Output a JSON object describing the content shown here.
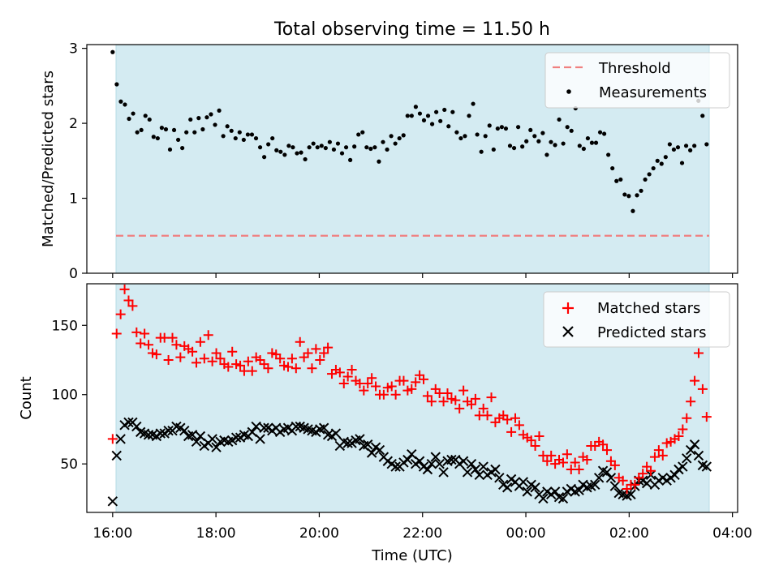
{
  "chart_data": {
    "type": "scatter",
    "title": "Total observing time = 11.50 h",
    "xlabel": "Time (UTC)",
    "x_units": "hours since 16:00 UTC",
    "xlim": [
      -0.5,
      12.1
    ],
    "observing_window": [
      0,
      11.5
    ],
    "x_ticks": [
      {
        "label": "16:00",
        "value": 0
      },
      {
        "label": "18:00",
        "value": 2
      },
      {
        "label": "20:00",
        "value": 4
      },
      {
        "label": "22:00",
        "value": 6
      },
      {
        "label": "00:00",
        "value": 8
      },
      {
        "label": "02:00",
        "value": 10
      },
      {
        "label": "04:00",
        "value": 12
      }
    ],
    "colors": {
      "window": "#d4ebf2",
      "matched": "#ff0000",
      "predicted": "#000000",
      "threshold": "#f08080",
      "measurement": "#000000"
    },
    "panels": [
      {
        "ylabel": "Matched/Predicted stars",
        "ylim": [
          0,
          3.05
        ],
        "y_ticks": [
          "0",
          "1",
          "2",
          "3"
        ],
        "threshold": 0.5,
        "legend": [
          "Threshold",
          "Measurements"
        ],
        "series_name": "Measurements",
        "ratio": [
          2.95,
          2.52,
          2.29,
          2.25,
          2.06,
          2.13,
          1.88,
          1.91,
          2.1,
          2.05,
          1.82,
          1.8,
          1.94,
          1.92,
          1.65,
          1.91,
          1.78,
          1.67,
          1.88,
          2.05,
          1.88,
          2.07,
          1.92,
          2.08,
          2.12,
          1.98,
          2.17,
          1.83,
          1.96,
          1.9,
          1.8,
          1.88,
          1.78,
          1.85,
          1.85,
          1.8,
          1.68,
          1.55,
          1.72,
          1.8,
          1.64,
          1.62,
          1.58,
          1.7,
          1.68,
          1.6,
          1.61,
          1.52,
          1.68,
          1.73,
          1.68,
          1.7,
          1.67,
          1.75,
          1.65,
          1.73,
          1.6,
          1.68,
          1.51,
          1.69,
          1.85,
          1.88,
          1.68,
          1.66,
          1.68,
          1.49,
          1.75,
          1.65,
          1.83,
          1.73,
          1.8,
          1.84,
          2.1,
          2.1,
          2.22,
          2.13,
          2.04,
          2.1,
          1.99,
          2.15,
          2.03,
          2.18,
          1.96,
          2.15,
          1.88,
          1.8,
          1.83,
          2.1,
          2.26,
          1.85,
          1.62,
          1.83,
          1.97,
          1.65,
          1.93,
          1.95,
          1.93,
          1.7,
          1.67,
          1.95,
          1.69,
          1.76,
          1.91,
          1.83,
          1.76,
          1.87,
          1.58,
          1.75,
          1.71,
          2.05,
          1.73,
          1.95,
          1.9,
          2.2,
          1.7,
          1.66,
          1.8,
          1.74,
          1.74,
          1.88,
          1.86,
          1.58,
          1.4,
          1.23,
          1.25,
          1.05,
          1.03,
          0.83,
          1.04,
          1.1,
          1.25,
          1.32,
          1.4,
          1.5,
          1.46,
          1.55,
          1.72,
          1.65,
          1.68,
          1.47,
          1.7,
          1.64,
          1.7,
          2.3,
          2.1,
          1.72
        ]
      },
      {
        "ylabel": "Count",
        "ylim": [
          15,
          180
        ],
        "y_ticks": [
          "50",
          "100",
          "150"
        ],
        "legend": [
          "Matched stars",
          "Predicted stars"
        ],
        "matched": [
          68,
          144,
          158,
          176,
          168,
          164,
          145,
          137,
          144,
          136,
          130,
          129,
          141,
          141,
          125,
          141,
          136,
          127,
          135,
          133,
          131,
          123,
          138,
          126,
          143,
          124,
          130,
          126,
          122,
          120,
          131,
          122,
          121,
          117,
          124,
          117,
          127,
          125,
          122,
          119,
          130,
          129,
          126,
          121,
          120,
          126,
          119,
          138,
          127,
          130,
          119,
          133,
          125,
          130,
          134,
          115,
          118,
          116,
          108,
          113,
          118,
          110,
          108,
          103,
          108,
          112,
          106,
          100,
          100,
          105,
          106,
          100,
          110,
          110,
          103,
          104,
          109,
          114,
          111,
          99,
          95,
          104,
          101,
          95,
          101,
          97,
          96,
          90,
          103,
          95,
          93,
          97,
          85,
          90,
          85,
          98,
          80,
          83,
          85,
          82,
          73,
          83,
          78,
          71,
          69,
          67,
          63,
          70,
          56,
          52,
          56,
          50,
          53,
          51,
          57,
          46,
          51,
          46,
          55,
          53,
          63,
          63,
          66,
          64,
          60,
          52,
          49,
          40,
          38,
          32,
          35,
          35,
          40,
          43,
          48,
          45,
          55,
          60,
          56,
          65,
          66,
          68,
          70,
          75,
          83,
          95,
          110,
          130,
          104,
          84
        ],
        "predicted": [
          23,
          56,
          68,
          78,
          80,
          80,
          77,
          73,
          72,
          71,
          71,
          70,
          72,
          72,
          74,
          74,
          77,
          76,
          74,
          70,
          71,
          66,
          70,
          63,
          65,
          68,
          62,
          66,
          67,
          66,
          67,
          69,
          69,
          71,
          70,
          73,
          77,
          68,
          76,
          76,
          74,
          76,
          73,
          75,
          76,
          74,
          77,
          77,
          76,
          75,
          74,
          73,
          75,
          76,
          71,
          70,
          72,
          63,
          66,
          65,
          65,
          67,
          68,
          63,
          64,
          58,
          62,
          60,
          55,
          52,
          50,
          48,
          48,
          51,
          53,
          57,
          50,
          52,
          48,
          46,
          50,
          55,
          50,
          44,
          52,
          53,
          53,
          50,
          52,
          44,
          50,
          46,
          42,
          48,
          42,
          44,
          46,
          40,
          35,
          33,
          39,
          37,
          34,
          37,
          30,
          35,
          33,
          28,
          25,
          30,
          28,
          30,
          26,
          25,
          30,
          32,
          30,
          31,
          35,
          33,
          34,
          35,
          40,
          45,
          44,
          40,
          34,
          29,
          28,
          27,
          28,
          34,
          38,
          38,
          36,
          42,
          35,
          38,
          40,
          38,
          40,
          42,
          46,
          48,
          54,
          60,
          64,
          56,
          49,
          48
        ]
      }
    ]
  }
}
